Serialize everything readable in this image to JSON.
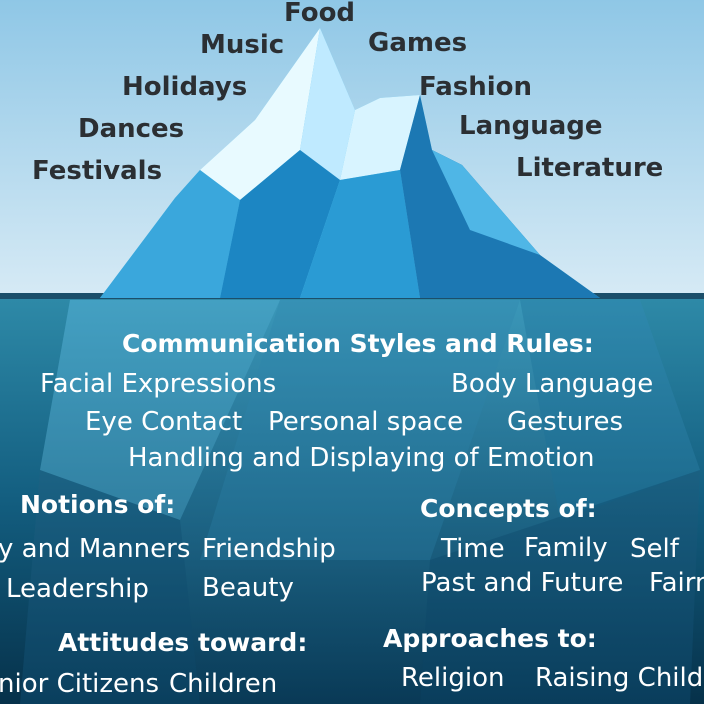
{
  "colors": {
    "sky_top": "#8fc7e6",
    "sky_bottom": "#d6eaf5",
    "water_top": "#2e8aa8",
    "water_bottom": "#06314a",
    "ice_light": "#d8f4ff",
    "ice_mid": "#5fc6ee",
    "ice_dark": "#1c78b3",
    "above_text": "#2b2f33",
    "below_text": "#ffffff"
  },
  "above_water": [
    "Food",
    "Music",
    "Games",
    "Holidays",
    "Fashion",
    "Dances",
    "Language",
    "Festivals",
    "Literature"
  ],
  "below_water": {
    "communication": {
      "title": "Communication Styles and Rules:",
      "items": [
        "Facial Expressions",
        "Body Language",
        "Eye Contact",
        "Personal space",
        "Gestures",
        "Handling and Displaying of Emotion"
      ]
    },
    "notions": {
      "title": "Notions of:",
      "items": [
        "y and Manners",
        "Friendship",
        "Leadership",
        "Beauty"
      ]
    },
    "concepts": {
      "title": "Concepts of:",
      "items": [
        "Time",
        "Family",
        "Self",
        "Past and Future",
        "Fairn"
      ]
    },
    "attitudes": {
      "title": "Attitudes toward:",
      "items": [
        "nior Citizens",
        "Children"
      ]
    },
    "approaches": {
      "title": "Approaches to:",
      "items": [
        "Religion",
        "Raising Childr"
      ]
    }
  }
}
